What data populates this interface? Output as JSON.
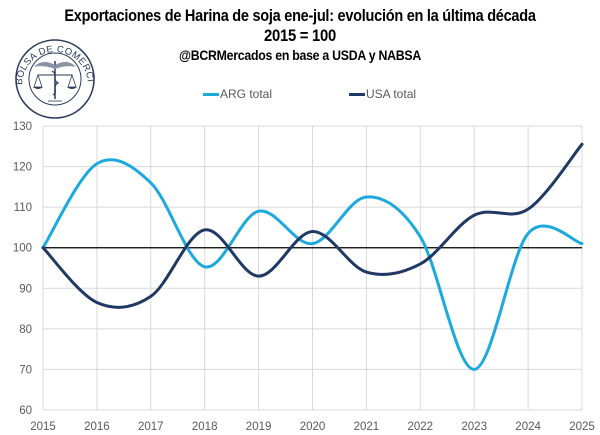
{
  "chart_data": {
    "type": "line",
    "title": "Exportaciones de Harina de soja ene-jul: evolución en la última década",
    "subtitle": "2015 = 100",
    "source": "@BCRMercados en base a USDA y NABSA",
    "xlabel": "",
    "ylabel": "",
    "x": [
      "2015",
      "2016",
      "2017",
      "2018",
      "2019",
      "2020",
      "2021",
      "2022",
      "2023",
      "2024",
      "2025"
    ],
    "ylim": [
      60,
      130
    ],
    "yticks": [
      60,
      70,
      80,
      90,
      100,
      110,
      120,
      130
    ],
    "reference_line": 100,
    "grid": true,
    "smooth": true,
    "legend_position": "top",
    "series": [
      {
        "name": "ARG total",
        "color": "#1BA9DE",
        "values": [
          100,
          120.7,
          116,
          95.3,
          109,
          101,
          112.5,
          102.7,
          70,
          103.5,
          101
        ]
      },
      {
        "name": "USA total",
        "color": "#203864",
        "values": [
          100,
          86.5,
          88,
          104.4,
          93,
          104,
          94,
          96,
          108,
          109.5,
          125.5
        ]
      }
    ]
  },
  "logo": {
    "text": "BOLSA DE COMERCIO DE ROSARIO"
  }
}
